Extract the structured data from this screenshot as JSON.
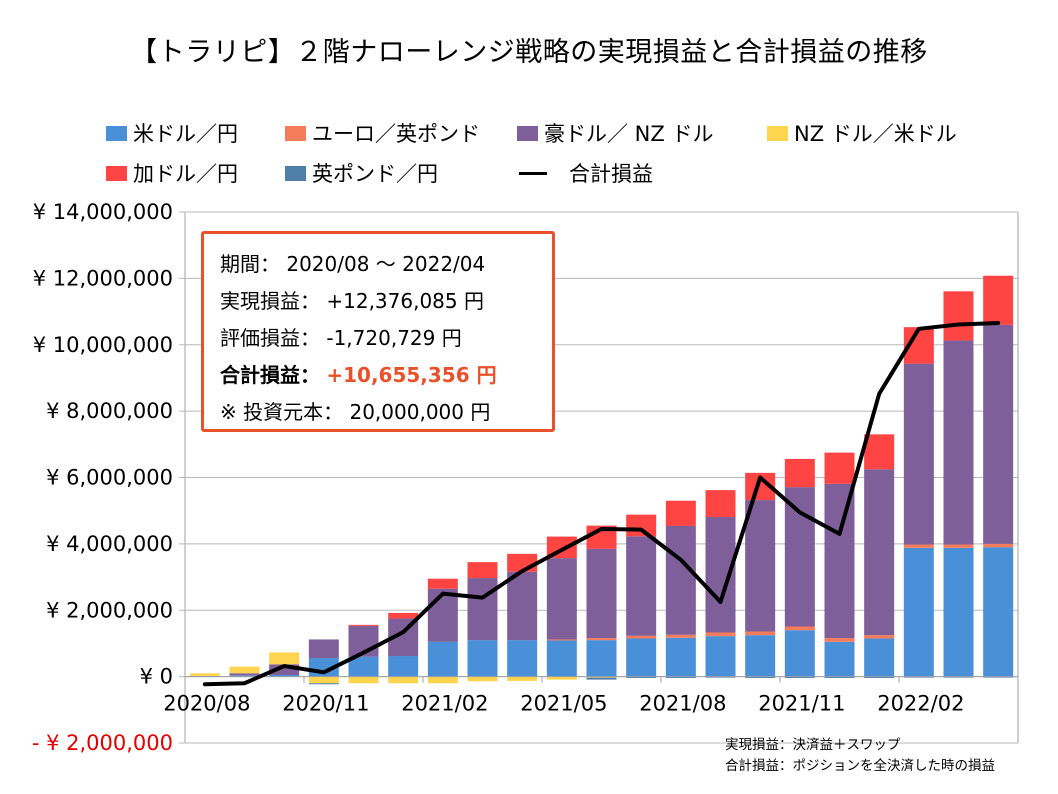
{
  "title": "【トラリピ】２階ナローレンジ戦略の実現損益と合計損益の推移",
  "legend": [
    {
      "key": "usdjpy",
      "label": "米ドル／円",
      "color": "#4a90d9",
      "kind": "bar"
    },
    {
      "key": "eurgbp",
      "label": "ユーロ／英ポンド",
      "color": "#f47c5a",
      "kind": "bar"
    },
    {
      "key": "audnzd",
      "label": "豪ドル／ NZ ドル",
      "color": "#7e5f9a",
      "kind": "bar"
    },
    {
      "key": "nzdusd",
      "label": "NZ ドル／米ドル",
      "color": "#ffd54f",
      "kind": "bar"
    },
    {
      "key": "cadjpy",
      "label": "加ドル／円",
      "color": "#ff4444",
      "kind": "bar"
    },
    {
      "key": "gbpjpy",
      "label": "英ポンド／円",
      "color": "#4f7eab",
      "kind": "bar"
    },
    {
      "key": "total",
      "label": "合計損益",
      "color": "#000000",
      "kind": "line"
    }
  ],
  "infobox": {
    "period_label": "期間：",
    "period_value": "2020/08 ～ 2022/04",
    "realized_label": "実現損益：",
    "realized_value": "+12,376,085 円",
    "unrealized_label": "評価損益：",
    "unrealized_value": "-1,720,729 円",
    "total_label": "合計損益：",
    "total_value": "+10,655,356 円",
    "principal_label": "※ 投資元本：",
    "principal_value": "20,000,000 円",
    "accent_color": "#e8522a"
  },
  "notes": [
    "実現損益：決済益＋スワップ",
    "合計損益：ポジションを全決済した時の損益"
  ],
  "chart_data": {
    "type": "bar",
    "stacked": true,
    "title": "【トラリピ】２階ナローレンジ戦略の実現損益と合計損益の推移",
    "xlabel": "",
    "ylabel": "",
    "ylim": [
      -2000000,
      14000000
    ],
    "yticks": [
      {
        "value": 14000000,
        "label": "¥ 14,000,000"
      },
      {
        "value": 12000000,
        "label": "¥ 12,000,000"
      },
      {
        "value": 10000000,
        "label": "¥ 10,000,000"
      },
      {
        "value": 8000000,
        "label": "¥ 8,000,000"
      },
      {
        "value": 6000000,
        "label": "¥ 6,000,000"
      },
      {
        "value": 4000000,
        "label": "¥ 4,000,000"
      },
      {
        "value": 2000000,
        "label": "¥ 2,000,000"
      },
      {
        "value": 0,
        "label": "¥ 0"
      },
      {
        "value": -2000000,
        "label": "- ¥ 2,000,000",
        "color": "#e00000"
      }
    ],
    "grid": true,
    "legend_position": "top",
    "categories": [
      "2020/08",
      "2020/09",
      "2020/10",
      "2020/11",
      "2020/12",
      "2021/01",
      "2021/02",
      "2021/03",
      "2021/04",
      "2021/05",
      "2021/06",
      "2021/07",
      "2021/08",
      "2021/09",
      "2021/10",
      "2021/11",
      "2021/12",
      "2022/01",
      "2022/02",
      "2022/03",
      "2022/04"
    ],
    "xtick_labels": [
      {
        "index": 0,
        "label": "2020/08"
      },
      {
        "index": 3,
        "label": "2020/11"
      },
      {
        "index": 6,
        "label": "2021/02"
      },
      {
        "index": 9,
        "label": "2021/05"
      },
      {
        "index": 12,
        "label": "2021/08"
      },
      {
        "index": 15,
        "label": "2021/11"
      },
      {
        "index": 18,
        "label": "2022/02"
      }
    ],
    "series": [
      {
        "name": "米ドル／円",
        "key": "usdjpy",
        "color": "#4a90d9",
        "values": [
          20000,
          40000,
          50000,
          560000,
          600000,
          620000,
          1050000,
          1100000,
          1100000,
          1100000,
          1100000,
          1150000,
          1170000,
          1220000,
          1250000,
          1400000,
          1050000,
          1150000,
          3880000,
          3880000,
          3900000
        ]
      },
      {
        "name": "ユーロ／英ポンド",
        "key": "eurgbp",
        "color": "#f47c5a",
        "values": [
          0,
          0,
          0,
          0,
          0,
          0,
          0,
          0,
          0,
          20000,
          60000,
          80000,
          90000,
          110000,
          110000,
          110000,
          110000,
          100000,
          100000,
          100000,
          100000
        ]
      },
      {
        "name": "豪ドル／ NZ ドル",
        "key": "audnzd",
        "color": "#7e5f9a",
        "values": [
          0,
          60000,
          320000,
          560000,
          930000,
          1130000,
          1600000,
          1870000,
          2060000,
          2450000,
          2690000,
          3000000,
          3280000,
          3480000,
          3960000,
          4200000,
          4650000,
          5000000,
          5450000,
          6150000,
          6600000
        ]
      },
      {
        "name": "NZ ドル／米ドル",
        "key": "nzdusd",
        "color": "#ffd54f",
        "values": [
          80000,
          200000,
          360000,
          -200000,
          -200000,
          -200000,
          -200000,
          -140000,
          -130000,
          -90000,
          -30000,
          0,
          0,
          0,
          0,
          0,
          0,
          0,
          0,
          0,
          0
        ]
      },
      {
        "name": "加ドル／円",
        "key": "cadjpy",
        "color": "#ff4444",
        "values": [
          0,
          0,
          0,
          0,
          30000,
          170000,
          300000,
          480000,
          540000,
          650000,
          700000,
          650000,
          760000,
          810000,
          820000,
          850000,
          940000,
          1050000,
          1100000,
          1480000,
          1480000
        ]
      },
      {
        "name": "英ポンド／円",
        "key": "gbpjpy",
        "color": "#4f7eab",
        "values": [
          0,
          0,
          0,
          -30000,
          0,
          0,
          0,
          0,
          0,
          0,
          -60000,
          -40000,
          -40000,
          -30000,
          -40000,
          -40000,
          -40000,
          -40000,
          -30000,
          -30000,
          -30000
        ]
      }
    ],
    "line": {
      "name": "合計損益",
      "key": "total",
      "color": "#000000",
      "values": [
        -230000,
        -200000,
        320000,
        130000,
        720000,
        1340000,
        2500000,
        2380000,
        3180000,
        3820000,
        4450000,
        4430000,
        3520000,
        2250000,
        6000000,
        4950000,
        4300000,
        8520000,
        10480000,
        10610000,
        10655356
      ]
    }
  }
}
